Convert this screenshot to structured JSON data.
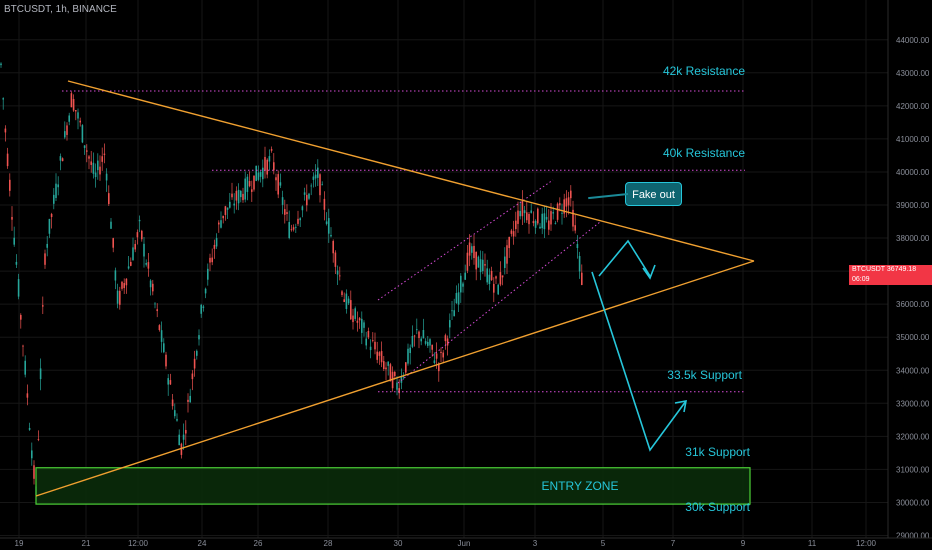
{
  "header": {
    "symbol_line": "BTCUSDT, 1h, BINANCE"
  },
  "price_tag": {
    "symbol": "BTCUSDT",
    "price": "36749.18",
    "countdown": "06:09"
  },
  "callout": {
    "label": "Fake out"
  },
  "colors": {
    "background": "#000000",
    "up_candle": "#26a69a",
    "down_candle": "#ef5350",
    "triangle": "#f0a030",
    "levels": "#d54bd5",
    "annotation": "#26c6da",
    "entry_zone_border": "#4cd137",
    "entry_zone_fill": "#0b2e0b",
    "price_tag": "#f23645"
  },
  "chart_data": {
    "type": "candlestick",
    "symbol": "BTCUSDT",
    "interval": "1h",
    "exchange": "BINANCE",
    "x_tick_labels": [
      "19",
      "21",
      "12:00",
      "24",
      "26",
      "28",
      "30",
      "Jun",
      "3",
      "5",
      "7",
      "9",
      "11",
      "12:00"
    ],
    "y_tick_labels": [
      44000,
      43000,
      42000,
      41000,
      40000,
      39000,
      38000,
      37000,
      36000,
      35000,
      34000,
      33000,
      32000,
      31000,
      30000,
      29000
    ],
    "ylim": [
      28800,
      44600
    ],
    "last_price": 36749.18,
    "price_path": [
      {
        "t": "19",
        "p": 43700
      },
      {
        "t": "19",
        "p": 41400
      },
      {
        "t": "19",
        "p": 30100
      },
      {
        "t": "19",
        "p": 37500
      },
      {
        "t": "21",
        "p": 42300
      },
      {
        "t": "21",
        "p": 39800
      },
      {
        "t": "21",
        "p": 40600
      },
      {
        "t": "12:00",
        "p": 36000
      },
      {
        "t": "12:00",
        "p": 38300
      },
      {
        "t": "12:00",
        "p": 35200
      },
      {
        "t": "24",
        "p": 31600
      },
      {
        "t": "24",
        "p": 36500
      },
      {
        "t": "24",
        "p": 38700
      },
      {
        "t": "26",
        "p": 40400
      },
      {
        "t": "26",
        "p": 38200
      },
      {
        "t": "28",
        "p": 39900
      },
      {
        "t": "28",
        "p": 36100
      },
      {
        "t": "30",
        "p": 33500
      },
      {
        "t": "30",
        "p": 35200
      },
      {
        "t": "Jun",
        "p": 34200
      },
      {
        "t": "Jun",
        "p": 37600
      },
      {
        "t": "3",
        "p": 36500
      },
      {
        "t": "3",
        "p": 38900
      },
      {
        "t": "3",
        "p": 38400
      },
      {
        "t": "3",
        "p": 39300
      },
      {
        "t": "5",
        "p": 36750
      }
    ],
    "levels": [
      {
        "label": "42k Resistance",
        "price": 42450
      },
      {
        "label": "40k Resistance",
        "price": 40050
      },
      {
        "label": "33.5k Support",
        "price": 33350
      },
      {
        "label": "31k Support",
        "price": 31000
      },
      {
        "label": "30k Support",
        "price": 29950
      }
    ],
    "zones": [
      {
        "label": "ENTRY ZONE",
        "from": 29950,
        "to": 31050
      }
    ],
    "callouts": [
      {
        "label": "Fake out"
      }
    ]
  }
}
